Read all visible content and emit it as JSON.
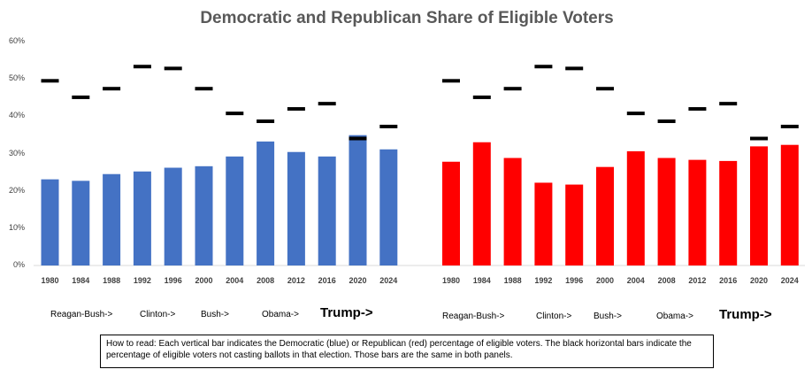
{
  "title": "Democratic and Republican Share of Eligible Voters",
  "y_ticks": [
    "60%",
    "50%",
    "40%",
    "30%",
    "20%",
    "10%",
    "0%"
  ],
  "eras": [
    {
      "label": "Reagan-Bush->",
      "emphasis": false
    },
    {
      "label": "Clinton->",
      "emphasis": false
    },
    {
      "label": "Bush->",
      "emphasis": false
    },
    {
      "label": "Obama->",
      "emphasis": false
    },
    {
      "label": "Trump->",
      "emphasis": true
    }
  ],
  "note": "How to read: Each vertical bar indicates the Democratic (blue) or Republican (red) percentage of eligible voters. The black horizontal bars indicate the percentage of eligible voters not casting ballots in that election. Those bars are the same in both panels.",
  "colors": {
    "democratic": "#4472C4",
    "republican": "#FF0000",
    "nonvoters": "#000000"
  },
  "chart_data": [
    {
      "type": "bar",
      "panel": "Democratic",
      "categories": [
        "1980",
        "1984",
        "1988",
        "1992",
        "1996",
        "2000",
        "2004",
        "2008",
        "2012",
        "2016",
        "2020",
        "2024"
      ],
      "series": [
        {
          "values": [
            23.0,
            22.6,
            24.4,
            25.1,
            26.1,
            26.5,
            29.1,
            33.1,
            30.3,
            29.1,
            34.8,
            31.0
          ]
        },
        {
          "marker": "dash",
          "values": [
            49.3,
            44.9,
            47.2,
            53.1,
            52.6,
            47.2,
            40.6,
            38.5,
            41.8,
            43.2,
            33.9,
            37.1
          ]
        }
      ],
      "ylim": [
        0,
        60
      ],
      "grid": false
    },
    {
      "type": "bar",
      "panel": "Republican",
      "categories": [
        "1980",
        "1984",
        "1988",
        "1992",
        "1996",
        "2000",
        "2004",
        "2008",
        "2012",
        "2016",
        "2020",
        "2024"
      ],
      "series": [
        {
          "values": [
            27.7,
            32.9,
            28.7,
            22.1,
            21.6,
            26.3,
            30.5,
            28.7,
            28.2,
            27.9,
            31.8,
            32.2
          ]
        },
        {
          "marker": "dash",
          "values": [
            49.3,
            44.9,
            47.2,
            53.1,
            52.6,
            47.2,
            40.6,
            38.5,
            41.8,
            43.2,
            33.9,
            37.1
          ]
        }
      ],
      "ylim": [
        0,
        60
      ],
      "grid": false
    }
  ]
}
